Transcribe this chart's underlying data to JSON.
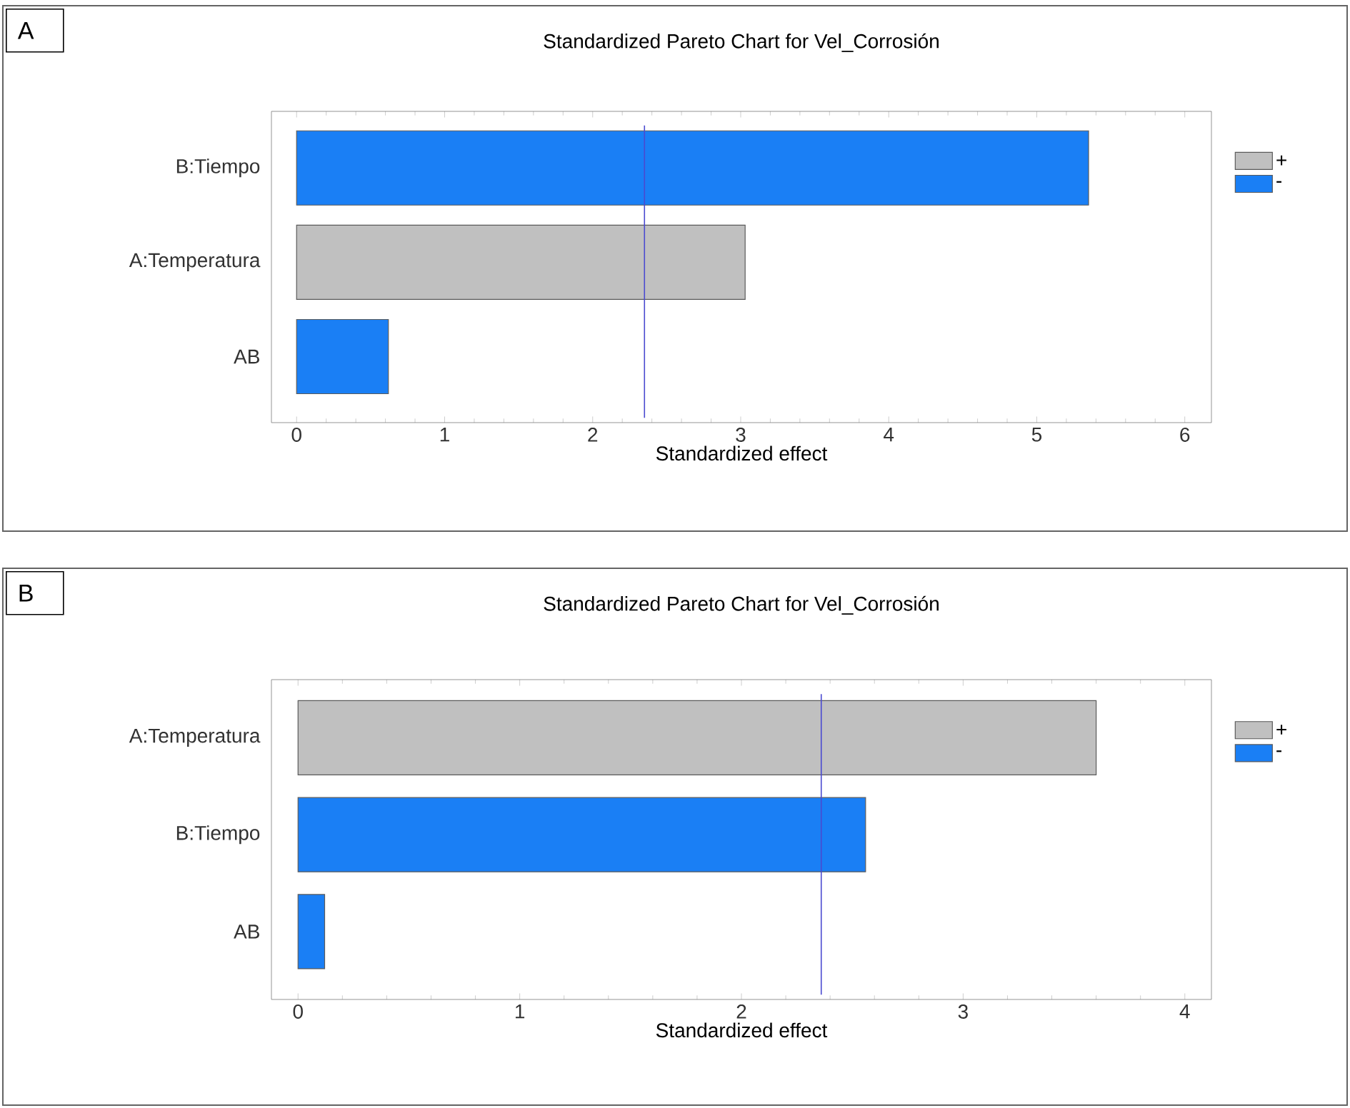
{
  "chart_data": [
    {
      "type": "bar",
      "orientation": "horizontal",
      "title": "Standardized Pareto Chart for Vel_Corrosión",
      "xlabel": "Standardized effect",
      "annotations": [
        "A"
      ],
      "categories": [
        "B:Tiempo",
        "A:Temperatura",
        "AB"
      ],
      "series": [
        {
          "name": "+",
          "color": "#c0c0c0",
          "values": [
            null,
            3.03,
            null
          ]
        },
        {
          "name": "-",
          "color": "#1a7ff5",
          "values": [
            5.35,
            null,
            0.62
          ]
        }
      ],
      "xlim": [
        -0.17,
        6.18
      ],
      "xticks": [
        0,
        1,
        2,
        3,
        4,
        5,
        6
      ],
      "legend": "right",
      "ref_lines": [
        {
          "axis": "x",
          "value": 2.35,
          "color": "#4a4ad0"
        }
      ]
    },
    {
      "type": "bar",
      "orientation": "horizontal",
      "title": "Standardized Pareto Chart for Vel_Corrosión",
      "xlabel": "Standardized effect",
      "annotations": [
        "B"
      ],
      "categories": [
        "A:Temperatura",
        "B:Tiempo",
        "AB"
      ],
      "series": [
        {
          "name": "+",
          "color": "#c0c0c0",
          "values": [
            3.6,
            null,
            null
          ]
        },
        {
          "name": "-",
          "color": "#1a7ff5",
          "values": [
            null,
            2.56,
            0.12
          ]
        }
      ],
      "xlim": [
        -0.12,
        4.12
      ],
      "xticks": [
        0,
        1,
        2,
        3,
        4
      ],
      "legend": "right",
      "ref_lines": [
        {
          "axis": "x",
          "value": 2.36,
          "color": "#4a4ad0"
        }
      ]
    }
  ]
}
